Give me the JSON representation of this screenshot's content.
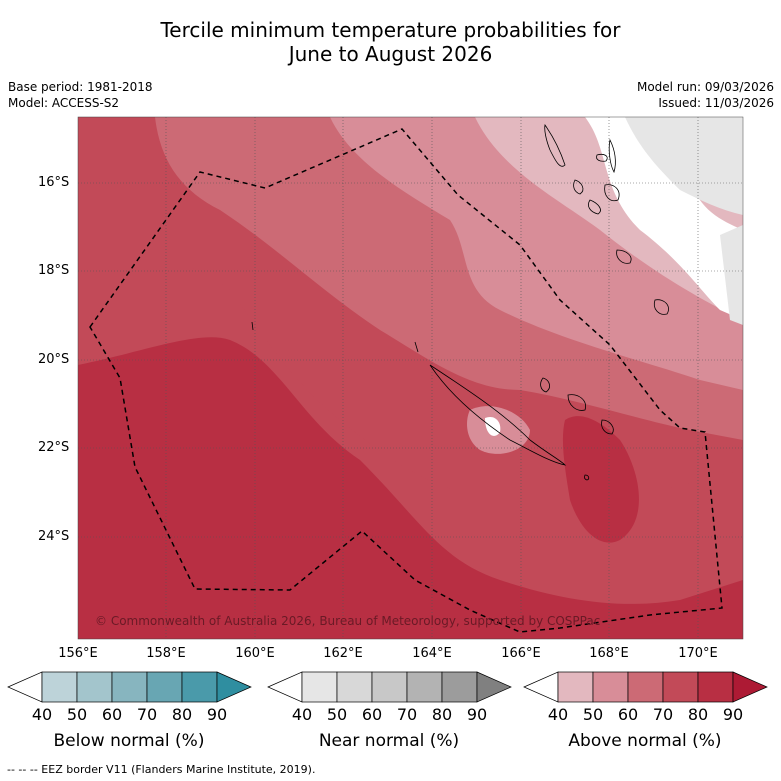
{
  "title_line1": "Tercile minimum temperature probabilities for",
  "title_line2": "June to August 2026",
  "meta_left": {
    "base_period": "Base period: 1981-2018",
    "model": "Model: ACCESS-S2"
  },
  "meta_right": {
    "model_run": "Model run: 09/03/2026",
    "issued": "Issued: 11/03/2026"
  },
  "map": {
    "lat_labels": [
      "16°S",
      "18°S",
      "20°S",
      "22°S",
      "24°S"
    ],
    "lon_labels": [
      "156°E",
      "158°E",
      "160°E",
      "162°E",
      "164°E",
      "166°E",
      "168°E",
      "170°E"
    ],
    "credit": "© Commonwealth of Australia 2026, Bureau of Meteorology, supported by COSPPac"
  },
  "colorbars": [
    {
      "label": "Below normal (%)",
      "ticks": [
        "40",
        "50",
        "60",
        "70",
        "80",
        "90"
      ],
      "colors": [
        "#ffffff",
        "#bdd3d9",
        "#a3c5cc",
        "#87b5bf",
        "#68a6b3",
        "#4a9aaa",
        "#2f8ea0"
      ]
    },
    {
      "label": "Near normal (%)",
      "ticks": [
        "40",
        "50",
        "60",
        "70",
        "80",
        "90"
      ],
      "colors": [
        "#ffffff",
        "#e6e6e6",
        "#d8d8d8",
        "#c8c8c8",
        "#b3b3b3",
        "#9c9c9c",
        "#808080"
      ]
    },
    {
      "label": "Above normal (%)",
      "ticks": [
        "40",
        "50",
        "60",
        "70",
        "80",
        "90"
      ],
      "colors": [
        "#ffffff",
        "#e3b8bf",
        "#d88d98",
        "#cc6a75",
        "#c24a58",
        "#b82f43",
        "#ad1a34"
      ]
    }
  ],
  "footnote": "--  --  -- EEZ border V11 (Flanders Marine Institute, 2019)."
}
